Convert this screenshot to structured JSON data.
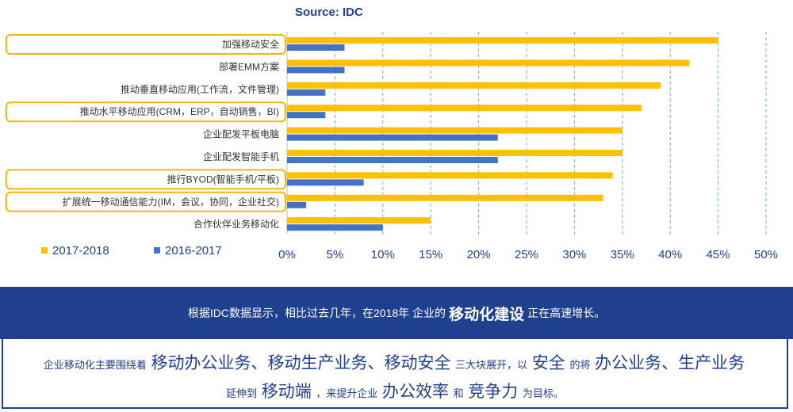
{
  "chart_data": {
    "type": "bar",
    "orientation": "horizontal",
    "title": "Source: IDC",
    "categories": [
      "加强移动安全",
      "部署EMM方案",
      "推动垂直移动应用(工作流，文件管理)",
      "推动水平移动应用(CRM，ERP，自动销售，BI)",
      "企业配发平板电脑",
      "企业配发智能手机",
      "推行BYOD(智能手机/平板)",
      "扩展统一移动通信能力(IM，会议，协同，企业社交)",
      "合作伙伴业务移动化"
    ],
    "highlighted": [
      true,
      false,
      false,
      true,
      false,
      false,
      true,
      true,
      false
    ],
    "series": [
      {
        "name": "2017-2018",
        "color": "#ffc000",
        "values": [
          45,
          42,
          39,
          37,
          35,
          35,
          34,
          33,
          15
        ]
      },
      {
        "name": "2016-2017",
        "color": "#4472c4",
        "values": [
          6,
          6,
          4,
          4,
          22,
          22,
          8,
          2,
          10
        ]
      }
    ],
    "xlim": [
      0,
      50
    ],
    "xticks": [
      "0%",
      "5%",
      "10%",
      "15%",
      "20%",
      "25%",
      "30%",
      "35%",
      "40%",
      "45%",
      "50%"
    ],
    "grid": "vertical-dashed",
    "legend_position": "bottom-left"
  },
  "summary": {
    "banner": {
      "pre": "根据IDC数据显示，相比过去几年，在2018年 企业的",
      "emph": "移动化建设",
      "post": "正在高速增长。"
    },
    "box": {
      "l1_a": "企业移动化主要围绕着",
      "l1_b": "移动办公业务、移动生产业务、移动安全",
      "l1_c": "三大块展开，以",
      "l1_d": "安全",
      "l1_e": "的将",
      "l1_f": "办公业务、生产业务",
      "l2_a": "延伸到",
      "l2_b": "移动端",
      "l2_c": "，来提升企业",
      "l2_d": "办公效率",
      "l2_e": "和",
      "l2_f": "竞争力",
      "l2_g": "为目标。"
    }
  }
}
